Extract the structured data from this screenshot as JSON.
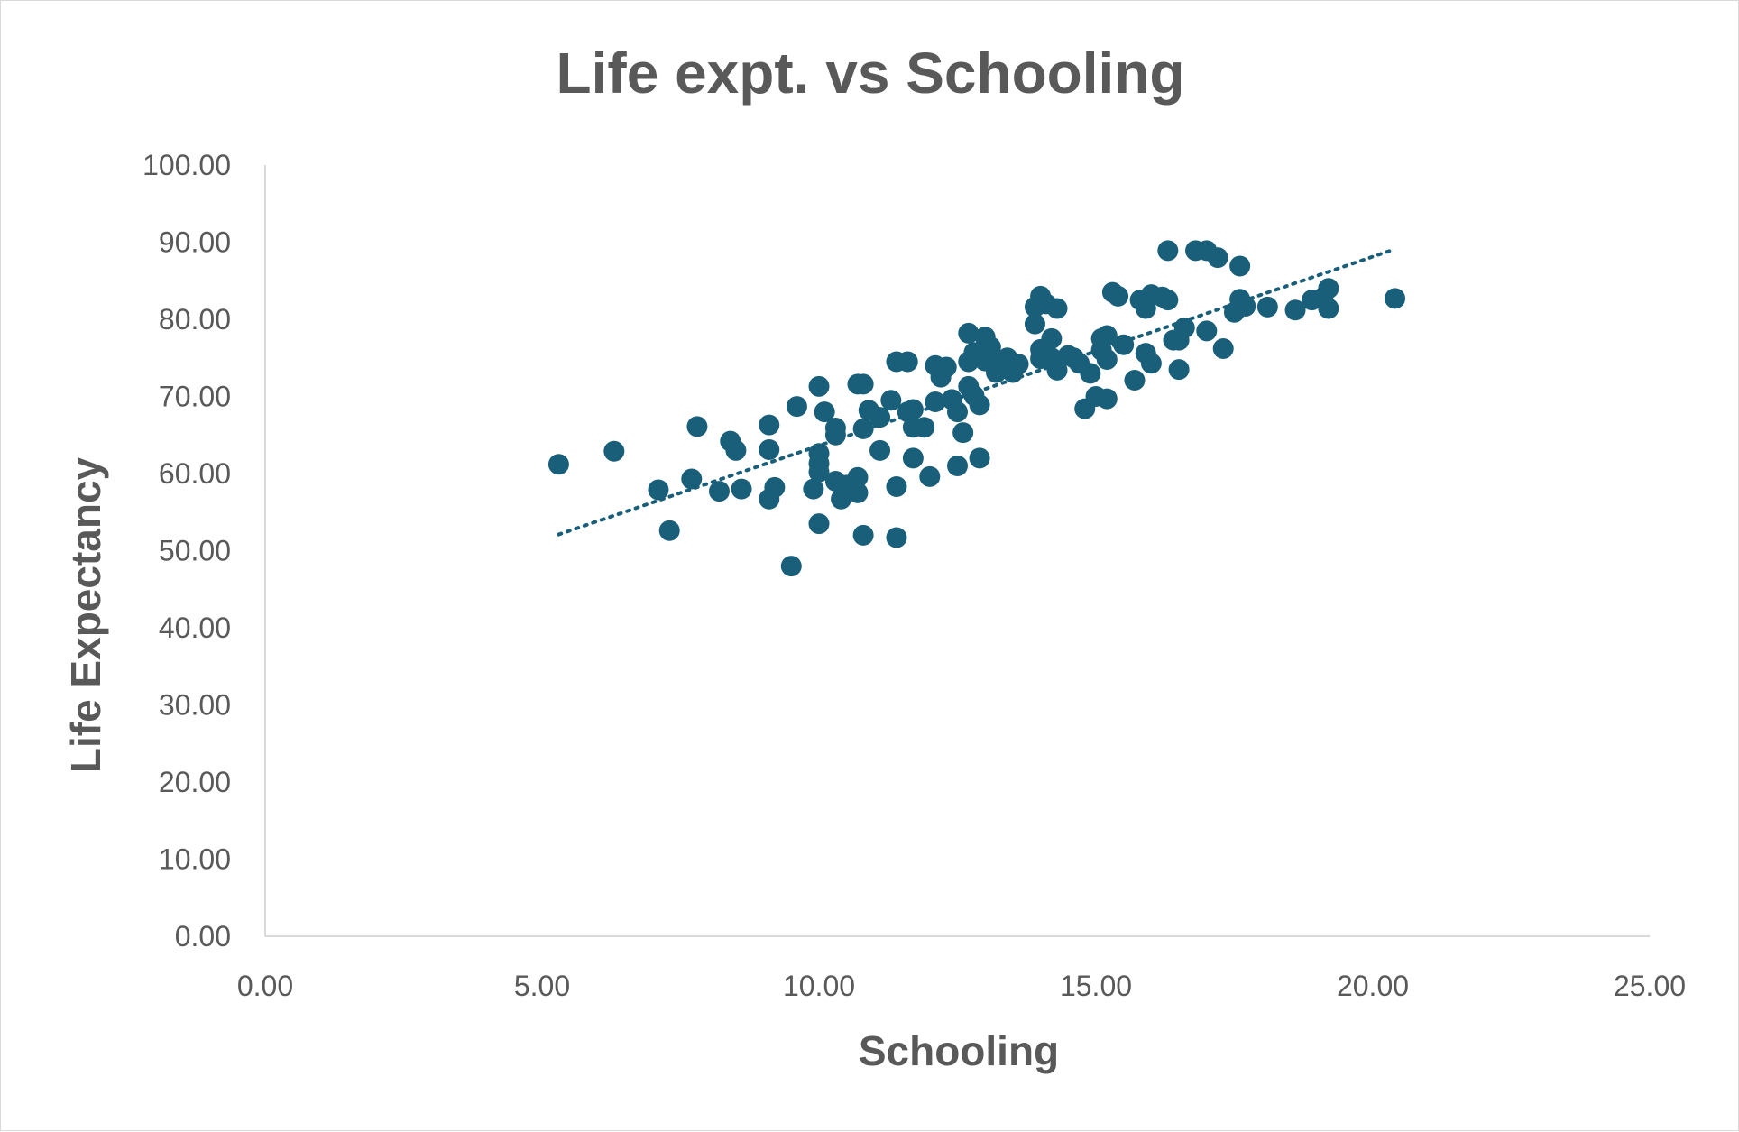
{
  "chart_data": {
    "type": "scatter",
    "title": "Life expt. vs Schooling",
    "xlabel": "Schooling",
    "ylabel": "Life Expectancy",
    "xlim": [
      0,
      25
    ],
    "ylim": [
      0,
      100
    ],
    "x_ticks": [
      "0.00",
      "5.00",
      "10.00",
      "15.00",
      "20.00",
      "25.00"
    ],
    "y_ticks": [
      "0.00",
      "10.00",
      "20.00",
      "30.00",
      "40.00",
      "50.00",
      "60.00",
      "70.00",
      "80.00",
      "90.00",
      "100.00"
    ],
    "grid": false,
    "legend": "none",
    "marker_color": "#1a5f7a",
    "trendline": {
      "type": "linear",
      "style": "dotted",
      "color": "#1a5f7a",
      "x": [
        5.3,
        20.4
      ],
      "y": [
        52.1,
        89.1
      ]
    },
    "points": [
      [
        5.3,
        61.2
      ],
      [
        6.3,
        62.9
      ],
      [
        7.1,
        57.9
      ],
      [
        7.3,
        52.6
      ],
      [
        7.7,
        59.3
      ],
      [
        7.8,
        66.1
      ],
      [
        8.2,
        57.7
      ],
      [
        8.4,
        64.2
      ],
      [
        8.5,
        63.0
      ],
      [
        8.6,
        58.0
      ],
      [
        9.1,
        66.3
      ],
      [
        9.1,
        63.1
      ],
      [
        9.1,
        56.7
      ],
      [
        9.2,
        58.2
      ],
      [
        9.5,
        48.0
      ],
      [
        9.6,
        68.7
      ],
      [
        9.9,
        58.0
      ],
      [
        10.0,
        71.3
      ],
      [
        10.0,
        62.6
      ],
      [
        10.0,
        61.3
      ],
      [
        10.0,
        60.2
      ],
      [
        10.0,
        53.5
      ],
      [
        10.1,
        68.0
      ],
      [
        10.3,
        65.9
      ],
      [
        10.3,
        65.0
      ],
      [
        10.3,
        59.0
      ],
      [
        10.4,
        56.7
      ],
      [
        10.5,
        58.5
      ],
      [
        10.7,
        71.6
      ],
      [
        10.7,
        59.5
      ],
      [
        10.7,
        57.5
      ],
      [
        10.8,
        71.6
      ],
      [
        10.8,
        65.8
      ],
      [
        10.8,
        52.0
      ],
      [
        10.9,
        68.2
      ],
      [
        11.1,
        67.3
      ],
      [
        11.1,
        63.0
      ],
      [
        11.3,
        69.5
      ],
      [
        11.4,
        74.5
      ],
      [
        11.4,
        58.3
      ],
      [
        11.4,
        51.7
      ],
      [
        11.6,
        74.5
      ],
      [
        11.6,
        68.0
      ],
      [
        11.7,
        68.3
      ],
      [
        11.7,
        66.0
      ],
      [
        11.7,
        62.0
      ],
      [
        11.9,
        66.0
      ],
      [
        12.0,
        59.6
      ],
      [
        12.1,
        74.0
      ],
      [
        12.1,
        69.3
      ],
      [
        12.2,
        72.5
      ],
      [
        12.3,
        73.8
      ],
      [
        12.4,
        69.6
      ],
      [
        12.5,
        68.0
      ],
      [
        12.5,
        61.0
      ],
      [
        12.6,
        65.3
      ],
      [
        12.7,
        78.2
      ],
      [
        12.7,
        74.5
      ],
      [
        12.7,
        71.3
      ],
      [
        12.8,
        75.7
      ],
      [
        12.8,
        70.1
      ],
      [
        12.9,
        68.9
      ],
      [
        12.9,
        62.0
      ],
      [
        13.0,
        77.7
      ],
      [
        13.0,
        74.6
      ],
      [
        13.1,
        76.4
      ],
      [
        13.2,
        74.5
      ],
      [
        13.2,
        73.1
      ],
      [
        13.3,
        74.0
      ],
      [
        13.4,
        75.0
      ],
      [
        13.5,
        73.1
      ],
      [
        13.6,
        74.2
      ],
      [
        13.9,
        81.6
      ],
      [
        13.9,
        79.4
      ],
      [
        14.0,
        83.0
      ],
      [
        14.0,
        76.1
      ],
      [
        14.0,
        74.9
      ],
      [
        14.1,
        82.0
      ],
      [
        14.2,
        77.5
      ],
      [
        14.2,
        75.0
      ],
      [
        14.3,
        81.4
      ],
      [
        14.3,
        73.4
      ],
      [
        14.5,
        75.3
      ],
      [
        14.6,
        75.0
      ],
      [
        14.7,
        74.3
      ],
      [
        14.8,
        68.4
      ],
      [
        14.9,
        73.0
      ],
      [
        15.0,
        70.0
      ],
      [
        15.1,
        77.5
      ],
      [
        15.1,
        76.0
      ],
      [
        15.2,
        77.9
      ],
      [
        15.2,
        74.8
      ],
      [
        15.2,
        69.7
      ],
      [
        15.3,
        83.5
      ],
      [
        15.4,
        83.0
      ],
      [
        15.5,
        76.7
      ],
      [
        15.7,
        72.1
      ],
      [
        15.8,
        82.5
      ],
      [
        15.9,
        75.6
      ],
      [
        15.9,
        81.4
      ],
      [
        16.0,
        83.2
      ],
      [
        16.0,
        74.3
      ],
      [
        16.2,
        82.9
      ],
      [
        16.3,
        82.5
      ],
      [
        16.3,
        88.9
      ],
      [
        16.4,
        77.3
      ],
      [
        16.5,
        77.3
      ],
      [
        16.5,
        73.5
      ],
      [
        16.6,
        78.9
      ],
      [
        16.8,
        88.9
      ],
      [
        17.0,
        88.9
      ],
      [
        17.0,
        78.5
      ],
      [
        17.2,
        88.0
      ],
      [
        17.3,
        76.2
      ],
      [
        17.5,
        80.9
      ],
      [
        17.6,
        86.9
      ],
      [
        17.6,
        82.6
      ],
      [
        17.7,
        81.7
      ],
      [
        18.1,
        81.6
      ],
      [
        18.6,
        81.2
      ],
      [
        18.9,
        82.5
      ],
      [
        19.1,
        82.8
      ],
      [
        19.2,
        84.0
      ],
      [
        19.2,
        81.4
      ],
      [
        20.4,
        82.7
      ]
    ]
  }
}
